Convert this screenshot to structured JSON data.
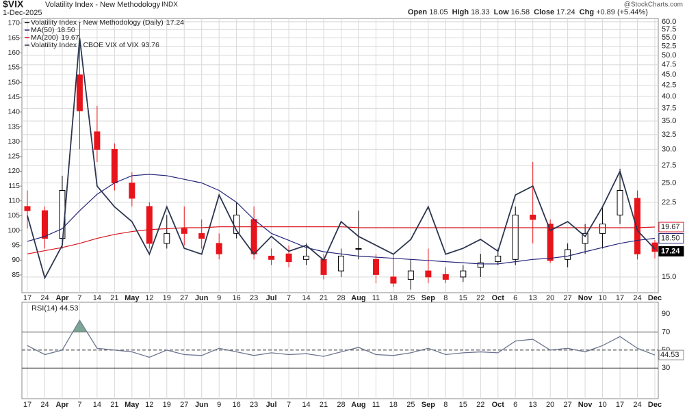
{
  "header": {
    "symbol": "$VIX",
    "name": "Volatility Index - New Methodology",
    "exchange": "INDX",
    "date": "1-Dec-2025",
    "watermark": "@StockCharts.com",
    "quote": [
      {
        "label": "Open",
        "value": "18.05"
      },
      {
        "label": "High",
        "value": "18.33"
      },
      {
        "label": "Low",
        "value": "16.58"
      },
      {
        "label": "Close",
        "value": "17.24"
      },
      {
        "label": "Chg",
        "value": "+0.89 (+5.44%)"
      }
    ]
  },
  "chart_data": [
    {
      "type": "candlestick",
      "legend": "upper left",
      "grid": true,
      "categories": [
        "17",
        "24",
        "Apr",
        "7",
        "14",
        "21",
        "May",
        "12",
        "19",
        "27",
        "Jun",
        "9",
        "16",
        "23",
        "Jul",
        "7",
        "14",
        "21",
        "28",
        "Aug",
        "11",
        "18",
        "25",
        "Sep",
        "8",
        "15",
        "22",
        "Oct",
        "6",
        "13",
        "20",
        "27",
        "Nov",
        "10",
        "17",
        "24",
        "Dec"
      ],
      "ylim": [
        79,
        171.6
      ],
      "yticks": [
        85,
        90,
        95,
        100,
        105,
        110,
        115,
        120,
        125,
        130,
        135,
        140,
        145,
        150,
        155,
        160,
        165,
        170
      ],
      "y2lim": [
        13.77,
        61.1
      ],
      "y2_log": true,
      "y2ticks": [
        {
          "value": 15,
          "label": "15.0"
        },
        22.5,
        {
          "value": 25,
          "label": "25.0"
        },
        27.5,
        {
          "value": 30,
          "label": "30.0"
        },
        32.5,
        {
          "value": 35,
          "label": "35.0"
        },
        37.5,
        {
          "value": 40,
          "label": "40.0"
        },
        42.5,
        {
          "value": 45,
          "label": "45.0"
        },
        47.5,
        {
          "value": 50,
          "label": "50.0"
        },
        52.5,
        {
          "value": 55,
          "label": "55.0"
        },
        57.5,
        {
          "value": 60,
          "label": "60.0"
        }
      ],
      "series": [
        {
          "name": "Volatility Index - New Methodology (Daily)",
          "legend_value": "17.24",
          "axis": "y2",
          "up_color": "#000000",
          "down_color": "#e8141b",
          "open": [
            22,
            21.5,
            18.5,
            45,
            33,
            30,
            25,
            22,
            18,
            19.5,
            19,
            18,
            19,
            20.5,
            16.8,
            17,
            16.5,
            16.5,
            15.5,
            17.5,
            16.5,
            15,
            14.8,
            15.5,
            15.2,
            15,
            15.8,
            16.3,
            16.5,
            21,
            20,
            16.5,
            18,
            19,
            21,
            23,
            18.05
          ],
          "high": [
            24,
            22,
            26,
            60,
            38,
            31,
            26.5,
            22.5,
            21,
            22,
            20.5,
            19,
            22.5,
            22,
            17.5,
            17.8,
            18,
            17,
            17.5,
            21.5,
            17,
            17,
            16.5,
            17.5,
            15.8,
            16,
            17,
            17.5,
            22,
            28,
            20.5,
            18,
            20,
            22,
            27,
            24,
            18.33
          ],
          "low": [
            19.5,
            17.5,
            17.5,
            30,
            28,
            24,
            22,
            17.5,
            17.5,
            17.8,
            17.5,
            16.5,
            18.5,
            16.5,
            16,
            15.8,
            16,
            14.8,
            15,
            16.5,
            14.5,
            14.2,
            14,
            14.5,
            14.5,
            14.6,
            15,
            16,
            16,
            18,
            16.2,
            15.8,
            17,
            17.5,
            20,
            16.5,
            16.58
          ],
          "close": [
            21.5,
            18.5,
            24,
            37,
            30,
            25,
            23,
            18,
            19,
            19,
            18.5,
            17,
            21,
            17,
            16.5,
            16.3,
            16.8,
            15.2,
            16.8,
            17.5,
            15.2,
            14.5,
            15.5,
            15,
            14.8,
            15.5,
            16.2,
            16.8,
            21,
            20.5,
            16.4,
            17.4,
            19,
            20,
            24,
            17,
            17.24
          ]
        },
        {
          "name": "MA(50)",
          "legend_value": "18.50",
          "axis": "y2",
          "color": "#23237a",
          "values": [
            18.2,
            18.7,
            19.5,
            21.5,
            23.5,
            25,
            26,
            26.2,
            26,
            25.5,
            25,
            24,
            22.5,
            20.5,
            19,
            18.3,
            17.6,
            17.2,
            17,
            16.8,
            16.7,
            16.6,
            16.5,
            16.4,
            16.3,
            16.2,
            16.1,
            16.1,
            16.3,
            16.5,
            16.6,
            16.8,
            17.2,
            17.6,
            18,
            18.3,
            18.5
          ]
        },
        {
          "name": "MA(200)",
          "legend_value": "19.67",
          "axis": "y2",
          "color": "#d8141b",
          "values": [
            17,
            17.3,
            17.6,
            18,
            18.5,
            18.9,
            19.2,
            19.4,
            19.5,
            19.6,
            19.6,
            19.7,
            19.7,
            19.7,
            19.7,
            19.7,
            19.7,
            19.7,
            19.7,
            19.6,
            19.6,
            19.6,
            19.6,
            19.6,
            19.6,
            19.6,
            19.6,
            19.6,
            19.6,
            19.6,
            19.6,
            19.6,
            19.6,
            19.6,
            19.6,
            19.6,
            19.67
          ]
        },
        {
          "name": "Volatility Index - CBOE VIX of VIX",
          "legend_value": "93.76",
          "axis": "y",
          "color": "#2b3550",
          "values": [
            105,
            84,
            95,
            165,
            115,
            108,
            103,
            92,
            108,
            94,
            92,
            112,
            100,
            92,
            98,
            93,
            95,
            90,
            103,
            98,
            95,
            92,
            97,
            108,
            92,
            94,
            97,
            93,
            112,
            115,
            100,
            103,
            98,
            108,
            120,
            100,
            93.76
          ]
        }
      ]
    },
    {
      "type": "line",
      "title": "RSI(14) 44.53",
      "legend_value": "44.53",
      "color": "#6b7590",
      "fill_color": "#5f8f7f",
      "ylim": [
        -3.9,
        103
      ],
      "yticks": [
        30,
        50,
        70,
        90
      ],
      "lines": [
        30,
        50,
        70
      ],
      "values": [
        55,
        45,
        50,
        83,
        52,
        50,
        48,
        42,
        50,
        45,
        44,
        52,
        48,
        44,
        47,
        45,
        46,
        43,
        48,
        53,
        45,
        44,
        47,
        52,
        45,
        47,
        48,
        47,
        60,
        62,
        50,
        52,
        48,
        55,
        65,
        52,
        44.53
      ]
    }
  ]
}
